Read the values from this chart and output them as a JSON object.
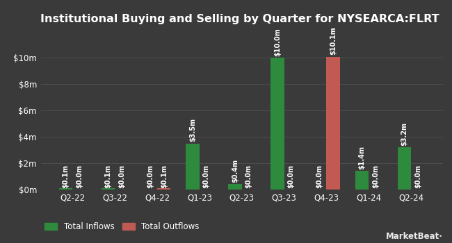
{
  "title": "Institutional Buying and Selling by Quarter for NYSEARCA:FLRT",
  "quarters": [
    "Q2-22",
    "Q3-22",
    "Q4-22",
    "Q1-23",
    "Q2-23",
    "Q3-23",
    "Q4-23",
    "Q1-24",
    "Q2-24"
  ],
  "inflows": [
    0.1,
    0.1,
    0.0,
    3.5,
    0.4,
    10.0,
    0.0,
    1.4,
    3.2
  ],
  "outflows": [
    0.0,
    0.0,
    0.1,
    0.0,
    0.0,
    0.0,
    10.1,
    0.0,
    0.0
  ],
  "inflow_labels": [
    "$0.1m",
    "$0.1m",
    "$0.0m",
    "$3.5m",
    "$0.4m",
    "$10.0m",
    "$0.0m",
    "$1.4m",
    "$3.2m"
  ],
  "outflow_labels": [
    "$0.0m",
    "$0.0m",
    "$0.1m",
    "$0.0m",
    "$0.0m",
    "$0.0m",
    "$10.1m",
    "$0.0m",
    "$0.0m"
  ],
  "inflow_color": "#2e8b3e",
  "outflow_color": "#c05a52",
  "bg_color": "#3a3a3a",
  "text_color": "#ffffff",
  "grid_color": "#505050",
  "bar_width": 0.32,
  "ylim": [
    0,
    12.0
  ],
  "yticks": [
    0,
    2,
    4,
    6,
    8,
    10
  ],
  "ytick_labels": [
    "$0m",
    "$2m",
    "$4m",
    "$6m",
    "$8m",
    "$10m"
  ],
  "legend_inflow": "Total Inflows",
  "legend_outflow": "Total Outflows",
  "title_fontsize": 11.5,
  "axis_fontsize": 8.5,
  "label_fontsize": 7.0
}
